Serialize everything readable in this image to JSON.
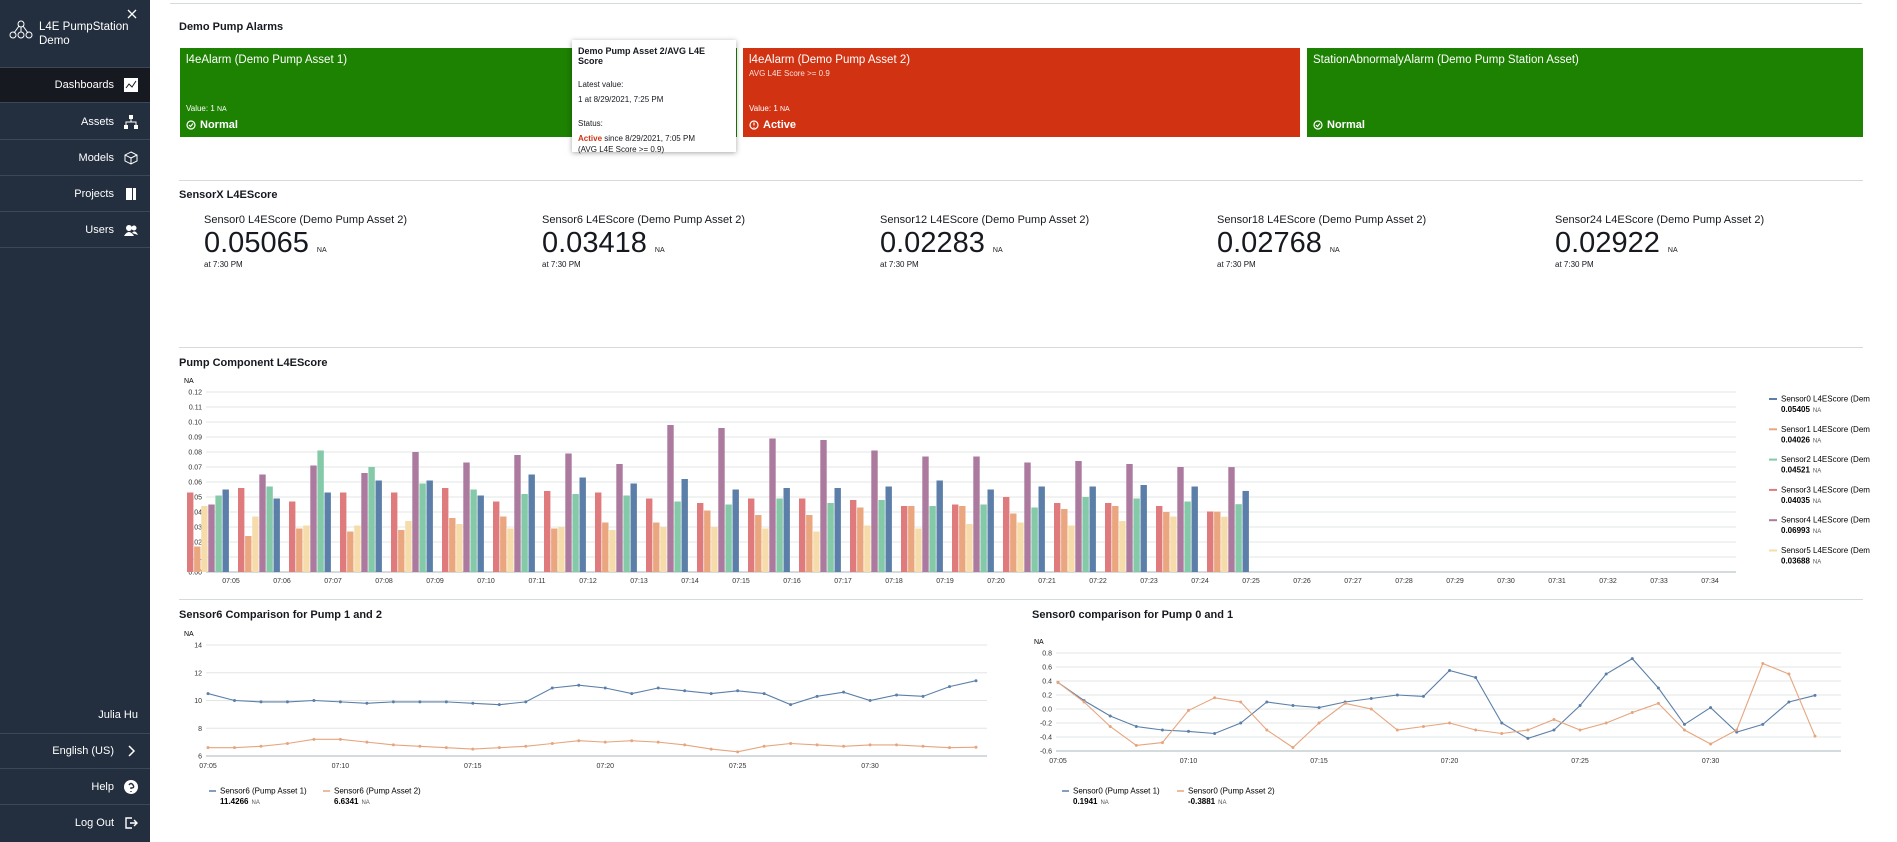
{
  "sidebar": {
    "app_name": "L4E PumpStation Demo",
    "nav": [
      "Dashboards",
      "Assets",
      "Models",
      "Projects",
      "Users"
    ],
    "user": "Julia Hu",
    "language": "English (US)",
    "help": "Help",
    "logout": "Log Out"
  },
  "alarms": {
    "title": "Demo Pump Alarms",
    "unit": "NA",
    "items": [
      {
        "name": "l4eAlarm (Demo Pump Asset 1)",
        "value_label": "Value: 1",
        "status": "Normal",
        "color": "#1d8102"
      },
      {
        "name": "l4eAlarm (Demo Pump Asset 2)",
        "condition": "AVG L4E Score >= 0.9",
        "value_label": "Value: 1",
        "status": "Active",
        "color": "#d13212"
      },
      {
        "name": "StationAbnormalyAlarm (Demo Pump Station Asset)",
        "status": "Normal",
        "color": "#1d8102"
      }
    ],
    "tooltip": {
      "title": "Demo Pump Asset 2/AVG L4E Score",
      "latest_label": "Latest value:",
      "latest": "1 at 8/29/2021, 7:25 PM",
      "status_label": "Status:",
      "status": "Active",
      "since": "since 8/29/2021, 7:05 PM",
      "condition": "(AVG L4E Score >= 0.9)"
    }
  },
  "kpis": {
    "title": "SensorX L4EScore",
    "unit": "NA",
    "time": "at 7:30 PM",
    "items": [
      {
        "name": "Sensor0 L4EScore (Demo Pump Asset 2)",
        "value": 0.05065
      },
      {
        "name": "Sensor6 L4EScore (Demo Pump Asset 2)",
        "value": 0.03418
      },
      {
        "name": "Sensor12 L4EScore (Demo Pump Asset 2)",
        "value": 0.02283
      },
      {
        "name": "Sensor18 L4EScore (Demo Pump Asset 2)",
        "value": 0.02768
      },
      {
        "name": "Sensor24 L4EScore (Demo Pump Asset 2)",
        "value": 0.02922
      }
    ]
  },
  "charts": [
    {
      "type": "bar",
      "title": "Pump Component L4EScore",
      "unit": "NA",
      "grid": true,
      "ylim": [
        0,
        0.12
      ],
      "yticks": [
        {
          "value": 0,
          "label": "0.00"
        },
        {
          "value": 0.01,
          "label": "0.01"
        },
        {
          "value": 0.02,
          "label": "0.02"
        },
        {
          "value": 0.03,
          "label": "0.03"
        },
        {
          "value": 0.04,
          "label": "0.04"
        },
        {
          "value": 0.05,
          "label": "0.05"
        },
        {
          "value": 0.06,
          "label": "0.06"
        },
        {
          "value": 0.07,
          "label": "0.07"
        },
        {
          "value": 0.08,
          "label": "0.08"
        },
        {
          "value": 0.09,
          "label": "0.09"
        },
        {
          "value": 0.1,
          "label": "0.10"
        },
        {
          "value": 0.11,
          "label": "0.11"
        },
        {
          "value": 0.12,
          "label": "0.12"
        }
      ],
      "categories": [
        "07:05",
        "07:06",
        "07:07",
        "07:08",
        "07:09",
        "07:10",
        "07:11",
        "07:12",
        "07:13",
        "07:14",
        "07:15",
        "07:16",
        "07:17",
        "07:18",
        "07:19",
        "07:20",
        "07:21",
        "07:22",
        "07:23",
        "07:24",
        "07:25",
        "07:26",
        "07:27",
        "07:28",
        "07:29",
        "07:30",
        "07:31",
        "07:32",
        "07:33",
        "07:34"
      ],
      "series": [
        {
          "name": "Sensor0 L4EScore (Dem",
          "color": "#5b7fa8",
          "values": [
            0.055,
            0.049,
            0.053,
            0.061,
            0.061,
            0.051,
            0.065,
            0.063,
            0.059,
            0.062,
            0.055,
            0.056,
            0.056,
            0.057,
            0.061,
            0.055,
            0.057,
            0.057,
            0.058,
            0.057,
            0.05405,
            null,
            null,
            null,
            null,
            null,
            null,
            null,
            null,
            null
          ]
        },
        {
          "name": "Sensor1 L4EScore (Dem",
          "color": "#eaa77f",
          "values": [
            0.017,
            0.024,
            0.029,
            0.027,
            0.028,
            0.036,
            0.037,
            0.029,
            0.033,
            0.033,
            0.041,
            0.038,
            0.038,
            0.043,
            0.044,
            0.044,
            0.039,
            0.042,
            0.044,
            0.04,
            0.04026,
            null,
            null,
            null,
            null,
            null,
            null,
            null,
            null,
            null
          ]
        },
        {
          "name": "Sensor2 L4EScore (Dem",
          "color": "#84c9a8",
          "values": [
            0.051,
            0.057,
            0.081,
            0.07,
            0.059,
            0.055,
            0.052,
            0.052,
            0.051,
            0.047,
            0.045,
            0.049,
            0.046,
            0.048,
            0.044,
            0.045,
            0.043,
            0.05,
            0.049,
            0.047,
            0.04521,
            null,
            null,
            null,
            null,
            null,
            null,
            null,
            null,
            null
          ]
        },
        {
          "name": "Sensor3 L4EScore (Dem",
          "color": "#e07b7d",
          "values": [
            0.053,
            0.056,
            0.047,
            0.053,
            0.053,
            0.056,
            0.047,
            0.054,
            0.053,
            0.049,
            0.046,
            0.049,
            0.049,
            0.048,
            0.044,
            0.045,
            0.05,
            0.046,
            0.046,
            0.044,
            0.04035,
            null,
            null,
            null,
            null,
            null,
            null,
            null,
            null,
            null
          ]
        },
        {
          "name": "Sensor4 L4EScore (Dem",
          "color": "#ab7a9e",
          "values": [
            0.045,
            0.065,
            0.071,
            0.066,
            0.08,
            0.073,
            0.078,
            0.079,
            0.072,
            0.098,
            0.096,
            0.089,
            0.088,
            0.081,
            0.077,
            0.077,
            0.073,
            0.074,
            0.072,
            0.07,
            0.06993,
            null,
            null,
            null,
            null,
            null,
            null,
            null,
            null,
            null
          ]
        },
        {
          "name": "Sensor5 L4EScore (Dem",
          "color": "#f6dcab",
          "values": [
            0.044,
            0.037,
            0.031,
            0.031,
            0.034,
            0.032,
            0.029,
            0.03,
            0.028,
            0.03,
            0.03,
            0.029,
            0.027,
            0.031,
            0.029,
            0.032,
            0.033,
            0.031,
            0.034,
            0.037,
            0.03688,
            null,
            null,
            null,
            null,
            null,
            null,
            null,
            null,
            null
          ]
        }
      ]
    },
    {
      "type": "line",
      "title": "Sensor6 Comparison for Pump 1 and 2",
      "unit": "NA",
      "grid": true,
      "ylim": [
        6,
        14
      ],
      "yticks": [
        6,
        8,
        10,
        12,
        14
      ],
      "categories": [
        "07:05",
        null,
        null,
        null,
        null,
        "07:10",
        null,
        null,
        null,
        null,
        "07:15",
        null,
        null,
        null,
        null,
        "07:20",
        null,
        null,
        null,
        null,
        "07:25",
        null,
        null,
        null,
        null,
        "07:30",
        null,
        null,
        null,
        null
      ],
      "series": [
        {
          "name": "Sensor6 (Pump Asset 1)",
          "color": "#5b7fa8",
          "values": [
            10.5,
            10.0,
            9.9,
            9.9,
            10.0,
            9.9,
            9.8,
            9.9,
            9.9,
            9.9,
            9.8,
            9.7,
            9.9,
            10.9,
            11.1,
            10.9,
            10.5,
            10.9,
            10.7,
            10.5,
            10.7,
            10.5,
            9.7,
            10.3,
            10.6,
            10.0,
            10.4,
            10.3,
            11.0,
            11.4266
          ]
        },
        {
          "name": "Sensor6 (Pump Asset 2)",
          "color": "#e6a57e",
          "values": [
            6.6,
            6.6,
            6.7,
            6.9,
            7.2,
            7.2,
            7.0,
            6.8,
            6.7,
            6.6,
            6.5,
            6.6,
            6.7,
            6.9,
            7.1,
            7.0,
            7.1,
            7.0,
            6.8,
            6.5,
            6.3,
            6.7,
            6.9,
            6.8,
            6.7,
            6.8,
            6.8,
            6.7,
            6.6,
            6.6341
          ]
        }
      ]
    },
    {
      "type": "line",
      "title": "Sensor0 comparison for Pump 0 and 1",
      "unit": "NA",
      "grid": true,
      "ylim": [
        -0.6,
        0.8
      ],
      "yticks": [
        -0.6,
        -0.4,
        -0.2,
        {
          "value": 0,
          "label": "0.0"
        },
        0.2,
        0.4,
        0.6,
        0.8
      ],
      "categories": [
        "07:05",
        null,
        null,
        null,
        null,
        "07:10",
        null,
        null,
        null,
        null,
        "07:15",
        null,
        null,
        null,
        null,
        "07:20",
        null,
        null,
        null,
        null,
        "07:25",
        null,
        null,
        null,
        null,
        "07:30",
        null,
        null,
        null,
        null
      ],
      "series": [
        {
          "name": "Sensor0 (Pump Asset 1)",
          "color": "#5b7fa8",
          "values": [
            0.38,
            0.12,
            -0.1,
            -0.25,
            -0.3,
            -0.32,
            -0.35,
            -0.2,
            0.1,
            0.05,
            0.02,
            0.1,
            0.15,
            0.2,
            0.18,
            0.55,
            0.45,
            -0.2,
            -0.42,
            -0.3,
            0.05,
            0.5,
            0.72,
            0.3,
            -0.22,
            0.02,
            -0.33,
            -0.22,
            0.1,
            0.1941
          ]
        },
        {
          "name": "Sensor0 (Pump Asset 2)",
          "color": "#e6a57e",
          "values": [
            0.38,
            0.1,
            -0.25,
            -0.52,
            -0.48,
            -0.02,
            0.16,
            0.1,
            -0.3,
            -0.55,
            -0.2,
            0.08,
            0.0,
            -0.3,
            -0.25,
            -0.2,
            -0.3,
            -0.35,
            -0.3,
            -0.15,
            -0.3,
            -0.2,
            -0.05,
            0.08,
            -0.3,
            -0.5,
            -0.3,
            0.65,
            0.5,
            -0.3881
          ]
        }
      ]
    }
  ]
}
